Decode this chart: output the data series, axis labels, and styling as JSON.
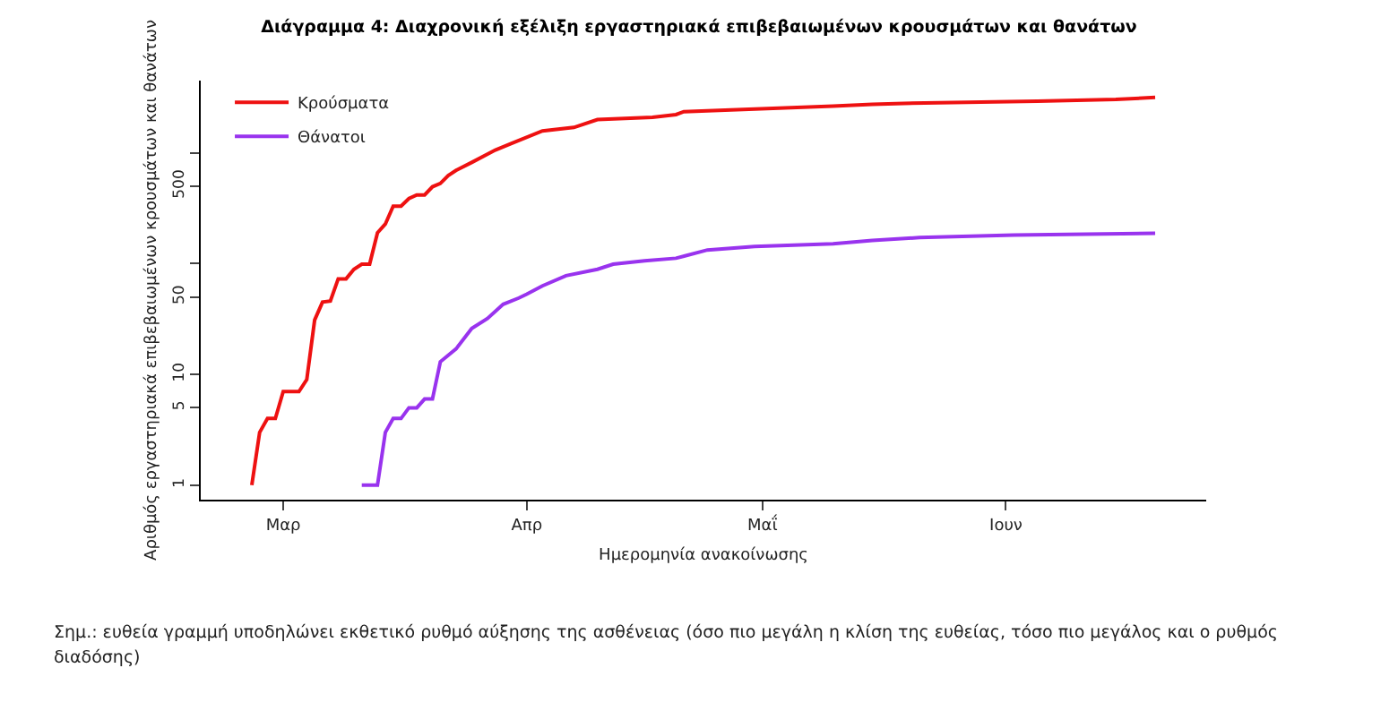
{
  "chart_data": {
    "type": "line",
    "title": "Διάγραμμα 4: Διαχρονική εξέλιξη εργαστηριακά επιβεβαιωμένων κρουσμάτων και θανάτων",
    "xlabel": "Ημερομηνία ανακοίνωσης",
    "ylabel": "Αριθμός εργαστηριακά επιβεβαιωμένων κρουσμάτων και θανάτων",
    "annotations": [
      "Σημ.: ευθεία γραμμή υποδηλώνει εκθετικό ρυθμό αύξησης της ασθένειας (όσο πιο μεγάλη η κλίση της ευθείας, τόσο πιο μεγάλος και ο ρυθμός διαδόσης)"
    ],
    "log": "y",
    "grid": false,
    "legend": "top left",
    "line_style": "solid",
    "categories": [
      null,
      null,
      null,
      null,
      null,
      null,
      null,
      null,
      null,
      null,
      "Μαρ",
      null,
      null,
      null,
      null,
      null,
      null,
      null,
      null,
      null,
      null,
      null,
      null,
      null,
      null,
      null,
      null,
      null,
      null,
      null,
      null,
      null,
      null,
      null,
      null,
      null,
      null,
      null,
      null,
      null,
      null,
      "Απρ",
      null,
      null,
      null,
      null,
      null,
      null,
      null,
      null,
      null,
      null,
      null,
      null,
      null,
      null,
      null,
      null,
      null,
      null,
      null,
      null,
      null,
      null,
      null,
      null,
      null,
      null,
      null,
      null,
      null,
      "Μαΐ",
      null,
      null,
      null,
      null,
      null,
      null,
      null,
      null,
      null,
      null,
      null,
      null,
      null,
      null,
      null,
      null,
      null,
      null,
      null,
      null,
      null,
      null,
      null,
      null,
      null,
      null,
      null,
      null,
      null,
      null,
      "Ιουν",
      null,
      null,
      null,
      null,
      null,
      null,
      null,
      null,
      null,
      null,
      null,
      null,
      null,
      null,
      null,
      null,
      null,
      null,
      null,
      null,
      null,
      null,
      null,
      null,
      null
    ],
    "ylim": [
      0.74,
      4500
    ],
    "yticks": [
      1,
      5,
      10,
      50,
      {
        "value": 100,
        "label": null
      },
      500,
      {
        "value": 1000,
        "label": null
      }
    ],
    "series": [
      {
        "name": "Κρούσματα",
        "color": "#ee1111",
        "values": [
          null,
          null,
          null,
          null,
          null,
          null,
          1,
          3,
          4,
          4,
          7,
          7,
          7,
          9,
          31,
          45,
          46,
          73,
          73,
          89,
          99,
          99,
          190,
          228,
          331,
          331,
          387,
          418,
          418,
          495,
          530,
          624,
          695,
          null,
          821,
          null,
          null,
          1061,
          null,
          1212,
          null,
          null,
          null,
          1580,
          null,
          null,
          null,
          1700,
          null,
          null,
          2000,
          null,
          null,
          null,
          null,
          null,
          null,
          2100,
          null,
          null,
          2220,
          2360,
          null,
          null,
          null,
          null,
          null,
          2450,
          null,
          null,
          null,
          null,
          null,
          null,
          null,
          null,
          null,
          null,
          null,
          null,
          2650,
          null,
          null,
          null,
          null,
          2750,
          null,
          null,
          null,
          2800,
          null,
          null,
          null,
          null,
          null,
          null,
          null,
          null,
          null,
          null,
          null,
          null,
          null,
          null,
          null,
          null,
          2930,
          null,
          null,
          null,
          null,
          null,
          null,
          null,
          null,
          null,
          3050,
          null,
          null,
          null,
          null,
          3170,
          null,
          null,
          null,
          null,
          null,
          null
        ]
      },
      {
        "name": "Θάνατοι",
        "color": "#9933ee",
        "values": [
          null,
          null,
          null,
          null,
          null,
          null,
          null,
          null,
          null,
          null,
          null,
          null,
          null,
          null,
          null,
          null,
          null,
          null,
          null,
          null,
          1,
          1,
          1,
          3,
          4,
          4,
          5,
          5,
          6,
          6,
          13,
          null,
          17,
          null,
          26,
          null,
          32,
          null,
          43,
          null,
          49,
          53,
          null,
          63,
          null,
          null,
          78,
          null,
          null,
          null,
          89,
          null,
          99,
          null,
          null,
          null,
          106,
          null,
          null,
          null,
          112,
          null,
          null,
          null,
          133,
          null,
          null,
          null,
          null,
          null,
          143,
          null,
          null,
          null,
          null,
          null,
          null,
          null,
          null,
          null,
          151,
          null,
          null,
          null,
          null,
          162,
          null,
          null,
          null,
          null,
          null,
          172,
          null,
          null,
          null,
          null,
          null,
          null,
          null,
          null,
          null,
          null,
          null,
          181,
          null,
          null,
          null,
          null,
          null,
          null,
          null,
          null,
          null,
          null,
          null,
          null,
          null,
          null,
          null,
          null,
          null,
          188,
          null,
          null,
          null,
          null,
          null,
          null
        ]
      }
    ]
  }
}
